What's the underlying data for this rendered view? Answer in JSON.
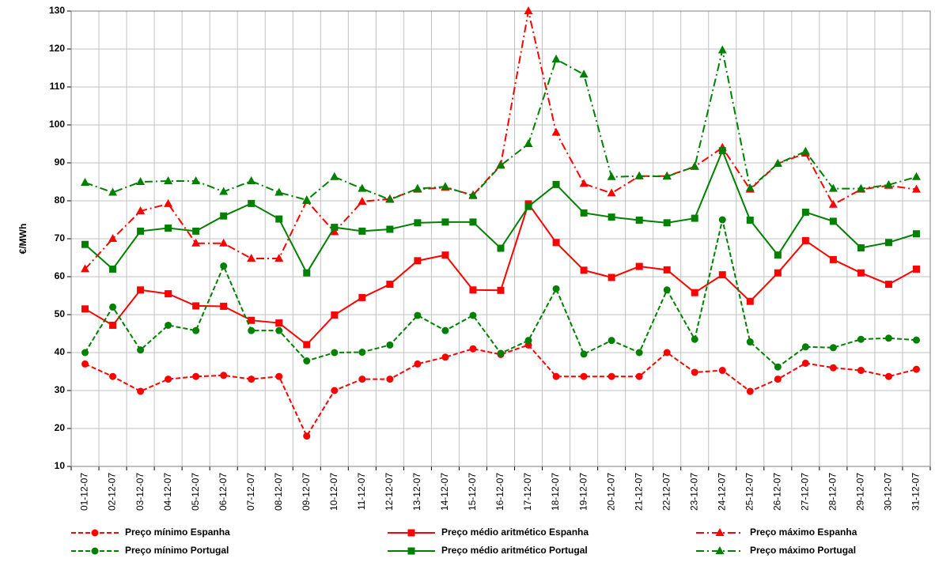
{
  "chart_data": {
    "type": "line",
    "y_label": "€/MWh",
    "categories": [
      "01-12-07",
      "02-12-07",
      "03-12-07",
      "04-12-07",
      "05-12-07",
      "06-12-07",
      "07-12-07",
      "08-12-07",
      "09-12-07",
      "10-12-07",
      "11-12-07",
      "12-12-07",
      "13-12-07",
      "14-12-07",
      "15-12-07",
      "16-12-07",
      "17-12-07",
      "18-12-07",
      "19-12-07",
      "20-12-07",
      "21-12-07",
      "22-12-07",
      "23-12-07",
      "24-12-07",
      "25-12-07",
      "26-12-07",
      "27-12-07",
      "28-12-07",
      "29-12-07",
      "30-12-07",
      "31-12-07"
    ],
    "series": [
      {
        "name": "Preço mínimo  Espanha",
        "color": "#ff0000",
        "dash": "dashed",
        "marker": "circle",
        "values": [
          37,
          33.7,
          29.8,
          33,
          33.7,
          34,
          33,
          33.7,
          18,
          30,
          33,
          33,
          37,
          38.8,
          41,
          39.5,
          42,
          33.7,
          33.7,
          33.7,
          33.7,
          40,
          34.8,
          35.3,
          29.8,
          33,
          37.2,
          36,
          35.3,
          33.7,
          35.6
        ]
      },
      {
        "name": "Preço médio aritmético Espanha",
        "color": "#ff0000",
        "dash": "solid",
        "marker": "square",
        "values": [
          51.5,
          47.2,
          56.5,
          55.5,
          52.3,
          52.2,
          48.5,
          47.8,
          42.1,
          49.9,
          54.5,
          58,
          64.2,
          65.7,
          56.5,
          56.4,
          79.2,
          69,
          61.7,
          59.8,
          62.7,
          61.8,
          55.8,
          60.5,
          53.5,
          61,
          69.5,
          64.5,
          61,
          58,
          62
        ]
      },
      {
        "name": "Preço máximo  Espanha",
        "color": "#ff0000",
        "dash": "dashdot",
        "marker": "triangle",
        "values": [
          62,
          70,
          77.3,
          79.2,
          68.8,
          68.8,
          64.8,
          64.8,
          80,
          71.8,
          79.8,
          80.5,
          83,
          83.5,
          81.5,
          89.5,
          130,
          98,
          84.5,
          82,
          86.5,
          86.5,
          89,
          94,
          83,
          89.8,
          92.5,
          79,
          83,
          84,
          83
        ]
      },
      {
        "name": "Preço mínimo  Portugal",
        "color": "#008000",
        "dash": "dashed",
        "marker": "circle",
        "values": [
          40,
          52,
          40.7,
          47.2,
          45.8,
          62.8,
          45.8,
          45.8,
          37.8,
          40,
          40.1,
          42,
          49.8,
          45.8,
          49.8,
          39.8,
          43.2,
          56.8,
          39.6,
          43.2,
          40,
          56.5,
          43.5,
          75,
          42.8,
          36.2,
          41.5,
          41.3,
          43.5,
          43.8,
          43.3
        ]
      },
      {
        "name": "Preço médio aritmético Portugal",
        "color": "#008000",
        "dash": "solid",
        "marker": "square",
        "values": [
          68.5,
          62,
          72,
          72.8,
          72,
          76,
          79.3,
          75.2,
          61,
          73,
          72,
          72.5,
          74.2,
          74.4,
          74.4,
          67.5,
          78.5,
          84.3,
          76.8,
          75.7,
          74.9,
          74.2,
          75.4,
          93.2,
          74.9,
          65.7,
          77,
          74.6,
          67.6,
          69,
          71.3
        ]
      },
      {
        "name": "Preço máximo  Portugal",
        "color": "#008000",
        "dash": "dashdot",
        "marker": "triangle",
        "values": [
          84.8,
          82.2,
          85,
          85.2,
          85.2,
          82.4,
          85.2,
          82.2,
          80.2,
          86.3,
          83.2,
          80.3,
          83.2,
          83.7,
          81.3,
          89.3,
          95,
          117.3,
          113.3,
          86.3,
          86.5,
          86.4,
          89,
          119.7,
          83.3,
          89.8,
          93,
          83.2,
          83.2,
          84.2,
          86.3
        ]
      }
    ],
    "ylim": [
      10,
      130
    ],
    "yticks": [
      10,
      20,
      30,
      40,
      50,
      60,
      70,
      80,
      90,
      100,
      110,
      120,
      130
    ],
    "grid": true,
    "legend": "bottom"
  }
}
